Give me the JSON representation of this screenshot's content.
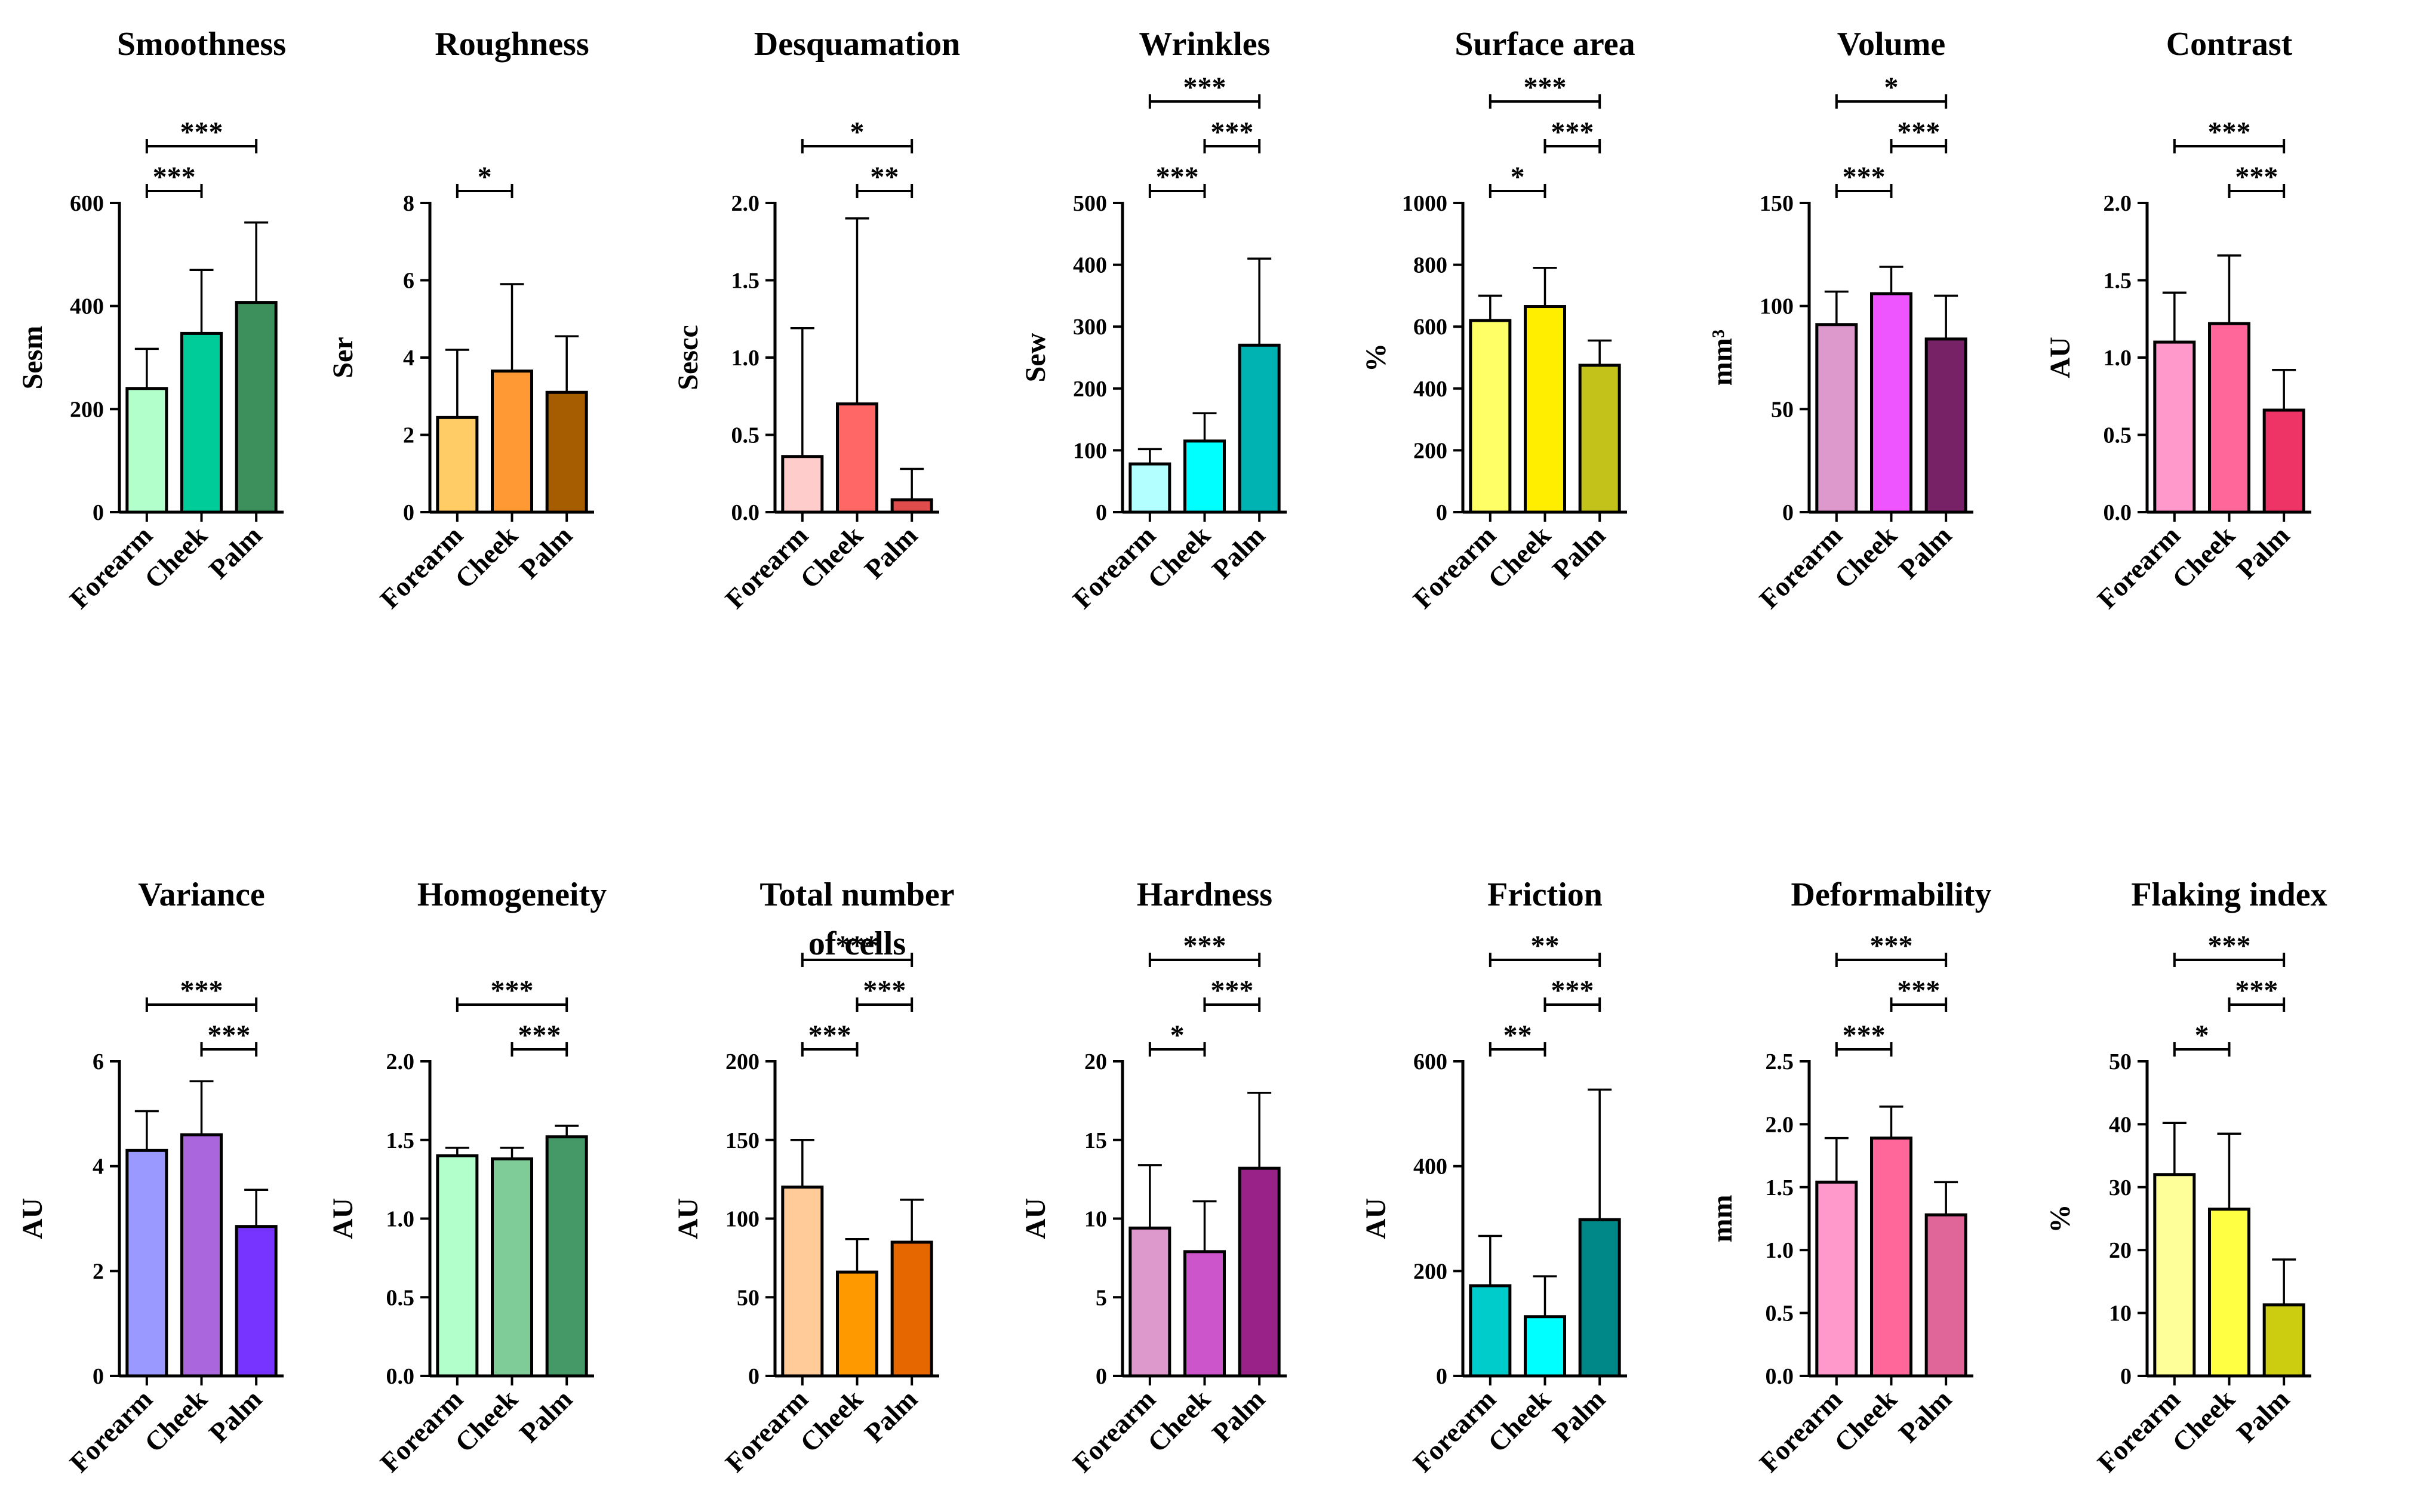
{
  "categories": [
    "Forearm",
    "Cheek",
    "Palm"
  ],
  "chart_data": [
    {
      "type": "bar",
      "title": [
        "Smoothness"
      ],
      "ylabel": "Sesm",
      "ylim": [
        0,
        600
      ],
      "yticks": [
        0,
        200,
        400,
        600
      ],
      "tick_labels": [
        "0",
        "200",
        "400",
        "600"
      ],
      "values": [
        240,
        347,
        407
      ],
      "errors": [
        77,
        123,
        155
      ],
      "colors": [
        "#b3ffcc",
        "#00cc99",
        "#3d8f5c"
      ],
      "significance": [
        {
          "from": 0,
          "to": 1,
          "label": "***"
        },
        {
          "from": 0,
          "to": 2,
          "label": "***"
        }
      ]
    },
    {
      "type": "bar",
      "title": [
        "Roughness"
      ],
      "ylabel": "Ser",
      "ylim": [
        0,
        8
      ],
      "yticks": [
        0,
        2,
        4,
        6,
        8
      ],
      "tick_labels": [
        "0",
        "2",
        "4",
        "6",
        "8"
      ],
      "values": [
        2.45,
        3.65,
        3.1
      ],
      "errors": [
        1.75,
        2.25,
        1.45
      ],
      "colors": [
        "#ffcc66",
        "#ff9933",
        "#a65c00"
      ],
      "significance": [
        {
          "from": 0,
          "to": 1,
          "label": "*"
        }
      ]
    },
    {
      "type": "bar",
      "title": [
        "Desquamation"
      ],
      "ylabel": "Sescc",
      "ylim": [
        0,
        2.0
      ],
      "yticks": [
        0,
        0.5,
        1.0,
        1.5,
        2.0
      ],
      "tick_labels": [
        "0.0",
        "0.5",
        "1.0",
        "1.5",
        "2.0"
      ],
      "values": [
        0.36,
        0.7,
        0.08
      ],
      "errors": [
        0.83,
        1.2,
        0.2
      ],
      "colors": [
        "#ffcccc",
        "#ff6666",
        "#e04c4c"
      ],
      "significance": [
        {
          "from": 1,
          "to": 2,
          "label": "**"
        },
        {
          "from": 0,
          "to": 2,
          "label": "*"
        }
      ]
    },
    {
      "type": "bar",
      "title": [
        "Wrinkles"
      ],
      "ylabel": "Sew",
      "ylim": [
        0,
        500
      ],
      "yticks": [
        0,
        100,
        200,
        300,
        400,
        500
      ],
      "tick_labels": [
        "0",
        "100",
        "200",
        "300",
        "400",
        "500"
      ],
      "values": [
        78,
        115,
        270
      ],
      "errors": [
        24,
        45,
        140
      ],
      "colors": [
        "#b3ffff",
        "#00ffff",
        "#00b3b3"
      ],
      "significance": [
        {
          "from": 0,
          "to": 1,
          "label": "***"
        },
        {
          "from": 1,
          "to": 2,
          "label": "***"
        },
        {
          "from": 0,
          "to": 2,
          "label": "***"
        }
      ]
    },
    {
      "type": "bar",
      "title": [
        "Surface area"
      ],
      "ylabel": "%",
      "ylim": [
        0,
        1000
      ],
      "yticks": [
        0,
        200,
        400,
        600,
        800,
        1000
      ],
      "tick_labels": [
        "0",
        "200",
        "400",
        "600",
        "800",
        "1000"
      ],
      "values": [
        620,
        665,
        475
      ],
      "errors": [
        80,
        125,
        80
      ],
      "colors": [
        "#ffff66",
        "#ffee00",
        "#c2c21a"
      ],
      "significance": [
        {
          "from": 0,
          "to": 1,
          "label": "*"
        },
        {
          "from": 1,
          "to": 2,
          "label": "***"
        },
        {
          "from": 0,
          "to": 2,
          "label": "***"
        }
      ]
    },
    {
      "type": "bar",
      "title": [
        "Volume"
      ],
      "ylabel": "mm³",
      "ylim": [
        0,
        150
      ],
      "yticks": [
        0,
        50,
        100,
        150
      ],
      "tick_labels": [
        "0",
        "50",
        "100",
        "150"
      ],
      "values": [
        91,
        106,
        84
      ],
      "errors": [
        16,
        13,
        21
      ],
      "colors": [
        "#dd99cc",
        "#ee55ff",
        "#772266"
      ],
      "significance": [
        {
          "from": 0,
          "to": 1,
          "label": "***"
        },
        {
          "from": 1,
          "to": 2,
          "label": "***"
        },
        {
          "from": 0,
          "to": 2,
          "label": "*"
        }
      ]
    },
    {
      "type": "bar",
      "title": [
        "Contrast"
      ],
      "ylabel": "AU",
      "ylim": [
        0,
        2.0
      ],
      "yticks": [
        0,
        0.5,
        1.0,
        1.5,
        2.0
      ],
      "tick_labels": [
        "0.0",
        "0.5",
        "1.0",
        "1.5",
        "2.0"
      ],
      "values": [
        1.1,
        1.22,
        0.66
      ],
      "errors": [
        0.32,
        0.44,
        0.26
      ],
      "colors": [
        "#ff99cc",
        "#ff6699",
        "#ee3366"
      ],
      "significance": [
        {
          "from": 1,
          "to": 2,
          "label": "***"
        },
        {
          "from": 0,
          "to": 2,
          "label": "***"
        }
      ]
    },
    {
      "type": "bar",
      "title": [
        "Variance"
      ],
      "ylabel": "AU",
      "ylim": [
        0,
        6
      ],
      "yticks": [
        0,
        2,
        4,
        6
      ],
      "tick_labels": [
        "0",
        "2",
        "4",
        "6"
      ],
      "values": [
        4.3,
        4.6,
        2.85
      ],
      "errors": [
        0.75,
        1.02,
        0.7
      ],
      "colors": [
        "#9999ff",
        "#aa66dd",
        "#7733ff"
      ],
      "significance": [
        {
          "from": 1,
          "to": 2,
          "label": "***"
        },
        {
          "from": 0,
          "to": 2,
          "label": "***"
        }
      ]
    },
    {
      "type": "bar",
      "title": [
        "Homogeneity"
      ],
      "ylabel": "AU",
      "ylim": [
        0,
        2.0
      ],
      "yticks": [
        0,
        0.5,
        1.0,
        1.5,
        2.0
      ],
      "tick_labels": [
        "0.0",
        "0.5",
        "1.0",
        "1.5",
        "2.0"
      ],
      "values": [
        1.4,
        1.38,
        1.52
      ],
      "errors": [
        0.05,
        0.07,
        0.07
      ],
      "colors": [
        "#b3ffcc",
        "#80cc99",
        "#449966"
      ],
      "significance": [
        {
          "from": 1,
          "to": 2,
          "label": "***"
        },
        {
          "from": 0,
          "to": 2,
          "label": "***"
        }
      ]
    },
    {
      "type": "bar",
      "title": [
        "Total number",
        "of cells"
      ],
      "ylabel": "AU",
      "ylim": [
        0,
        200
      ],
      "yticks": [
        0,
        50,
        100,
        150,
        200
      ],
      "tick_labels": [
        "0",
        "50",
        "100",
        "150",
        "200"
      ],
      "values": [
        120,
        66,
        85
      ],
      "errors": [
        30,
        21,
        27
      ],
      "colors": [
        "#ffcc99",
        "#ff9900",
        "#e66600"
      ],
      "significance": [
        {
          "from": 0,
          "to": 1,
          "label": "***"
        },
        {
          "from": 1,
          "to": 2,
          "label": "***"
        },
        {
          "from": 0,
          "to": 2,
          "label": "***"
        }
      ]
    },
    {
      "type": "bar",
      "title": [
        "Hardness"
      ],
      "ylabel": "AU",
      "ylim": [
        0,
        20
      ],
      "yticks": [
        0,
        5,
        10,
        15,
        20
      ],
      "tick_labels": [
        "0",
        "5",
        "10",
        "15",
        "20"
      ],
      "values": [
        9.4,
        7.9,
        13.2
      ],
      "errors": [
        4.0,
        3.2,
        4.8
      ],
      "colors": [
        "#dd99cc",
        "#cc55cc",
        "#992288"
      ],
      "significance": [
        {
          "from": 0,
          "to": 1,
          "label": "*"
        },
        {
          "from": 1,
          "to": 2,
          "label": "***"
        },
        {
          "from": 0,
          "to": 2,
          "label": "***"
        }
      ]
    },
    {
      "type": "bar",
      "title": [
        "Friction"
      ],
      "ylabel": "AU",
      "ylim": [
        0,
        600
      ],
      "yticks": [
        0,
        200,
        400,
        600
      ],
      "tick_labels": [
        "0",
        "200",
        "400",
        "600"
      ],
      "values": [
        172,
        113,
        298
      ],
      "errors": [
        95,
        77,
        248
      ],
      "colors": [
        "#00cccc",
        "#00ffff",
        "#008888"
      ],
      "significance": [
        {
          "from": 0,
          "to": 1,
          "label": "**"
        },
        {
          "from": 1,
          "to": 2,
          "label": "***"
        },
        {
          "from": 0,
          "to": 2,
          "label": "**"
        }
      ]
    },
    {
      "type": "bar",
      "title": [
        "Deformability"
      ],
      "ylabel": "mm",
      "ylim": [
        0,
        2.5
      ],
      "yticks": [
        0,
        0.5,
        1.0,
        1.5,
        2.0,
        2.5
      ],
      "tick_labels": [
        "0.0",
        "0.5",
        "1.0",
        "1.5",
        "2.0",
        "2.5"
      ],
      "values": [
        1.54,
        1.89,
        1.28
      ],
      "errors": [
        0.35,
        0.25,
        0.26
      ],
      "colors": [
        "#ff99cc",
        "#ff6699",
        "#e06699"
      ],
      "significance": [
        {
          "from": 0,
          "to": 1,
          "label": "***"
        },
        {
          "from": 1,
          "to": 2,
          "label": "***"
        },
        {
          "from": 0,
          "to": 2,
          "label": "***"
        }
      ]
    },
    {
      "type": "bar",
      "title": [
        "Flaking index"
      ],
      "ylabel": "%",
      "ylim": [
        0,
        50
      ],
      "yticks": [
        0,
        10,
        20,
        30,
        40,
        50
      ],
      "tick_labels": [
        "0",
        "10",
        "20",
        "30",
        "40",
        "50"
      ],
      "values": [
        32,
        26.5,
        11.3
      ],
      "errors": [
        8.2,
        12,
        7.2
      ],
      "colors": [
        "#ffff99",
        "#ffff44",
        "#cccc11"
      ],
      "significance": [
        {
          "from": 0,
          "to": 1,
          "label": "*"
        },
        {
          "from": 1,
          "to": 2,
          "label": "***"
        },
        {
          "from": 0,
          "to": 2,
          "label": "***"
        }
      ]
    }
  ]
}
